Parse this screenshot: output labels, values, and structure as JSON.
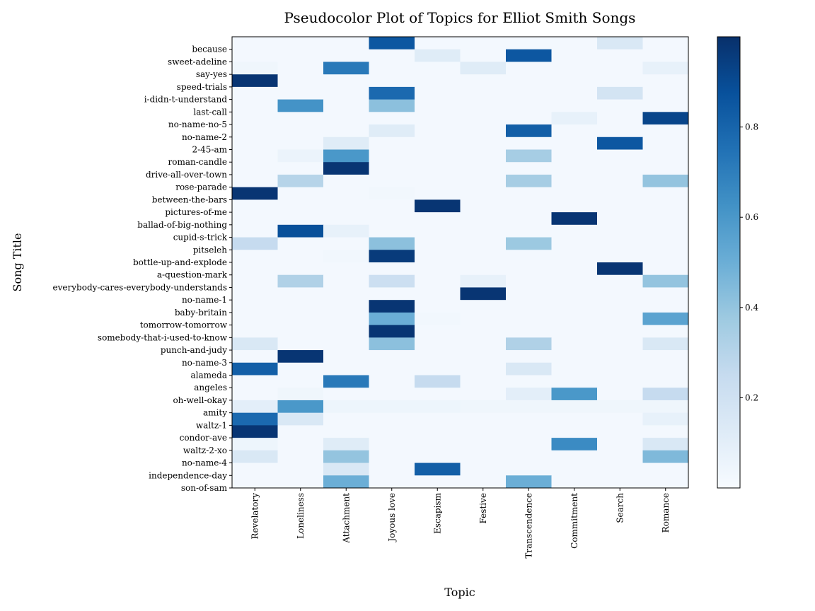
{
  "chart_data": {
    "type": "heatmap",
    "title": "Pseudocolor Plot of Topics for Elliot Smith Songs",
    "xlabel": "Topic",
    "ylabel": "Song Title",
    "colormap": "Blues",
    "colorbar_ticks": [
      0.2,
      0.4,
      0.6,
      0.8
    ],
    "colorbar_range": [
      0,
      1
    ],
    "topics": [
      "Revelatory",
      "Loneliness",
      "Attachment",
      "Joyous love",
      "Escapism",
      "Festive",
      "Transcendence",
      "Commitment",
      "Search",
      "Romance"
    ],
    "songs": [
      "because",
      "sweet-adeline",
      "say-yes",
      "speed-trials",
      "i-didn-t-understand",
      "last-call",
      "no-name-no-5",
      "no-name-2",
      "2-45-am",
      "roman-candle",
      "drive-all-over-town",
      "rose-parade",
      "between-the-bars",
      "pictures-of-me",
      "ballad-of-big-nothing",
      "cupid-s-trick",
      "pitseleh",
      "bottle-up-and-explode",
      "a-question-mark",
      "everybody-cares-everybody-understands",
      "no-name-1",
      "baby-britain",
      "tomorrow-tomorrow",
      "somebody-that-i-used-to-know",
      "punch-and-judy",
      "no-name-3",
      "alameda",
      "angeles",
      "oh-well-okay",
      "amity",
      "waltz-1",
      "condor-ave",
      "waltz-2-xo",
      "no-name-4",
      "independence-day",
      "son-of-sam"
    ],
    "values": [
      [
        0.02,
        0.02,
        0.02,
        0.85,
        0.02,
        0.02,
        0.02,
        0.02,
        0.15,
        0.02
      ],
      [
        0.02,
        0.02,
        0.02,
        0.02,
        0.12,
        0.02,
        0.85,
        0.02,
        0.02,
        0.02
      ],
      [
        0.04,
        0.02,
        0.72,
        0.02,
        0.02,
        0.12,
        0.02,
        0.02,
        0.02,
        0.08
      ],
      [
        0.98,
        0.02,
        0.02,
        0.02,
        0.02,
        0.02,
        0.02,
        0.02,
        0.02,
        0.02
      ],
      [
        0.02,
        0.02,
        0.02,
        0.78,
        0.02,
        0.02,
        0.02,
        0.02,
        0.18,
        0.02
      ],
      [
        0.02,
        0.62,
        0.02,
        0.42,
        0.02,
        0.02,
        0.02,
        0.02,
        0.02,
        0.02
      ],
      [
        0.02,
        0.02,
        0.02,
        0.02,
        0.02,
        0.02,
        0.02,
        0.08,
        0.02,
        0.92
      ],
      [
        0.02,
        0.02,
        0.02,
        0.12,
        0.02,
        0.02,
        0.82,
        0.02,
        0.02,
        0.02
      ],
      [
        0.02,
        0.02,
        0.12,
        0.02,
        0.02,
        0.02,
        0.02,
        0.02,
        0.85,
        0.02
      ],
      [
        0.02,
        0.06,
        0.6,
        0.02,
        0.02,
        0.02,
        0.35,
        0.02,
        0.02,
        0.02
      ],
      [
        0.02,
        0.02,
        0.98,
        0.02,
        0.02,
        0.02,
        0.02,
        0.02,
        0.02,
        0.02
      ],
      [
        0.02,
        0.3,
        0.02,
        0.02,
        0.02,
        0.02,
        0.35,
        0.02,
        0.02,
        0.4
      ],
      [
        0.98,
        0.02,
        0.02,
        0.03,
        0.02,
        0.02,
        0.02,
        0.02,
        0.02,
        0.02
      ],
      [
        0.02,
        0.02,
        0.02,
        0.02,
        0.98,
        0.02,
        0.02,
        0.02,
        0.02,
        0.02
      ],
      [
        0.02,
        0.02,
        0.02,
        0.02,
        0.02,
        0.02,
        0.02,
        0.98,
        0.02,
        0.02
      ],
      [
        0.02,
        0.88,
        0.08,
        0.02,
        0.02,
        0.02,
        0.02,
        0.02,
        0.02,
        0.02
      ],
      [
        0.25,
        0.02,
        0.02,
        0.42,
        0.02,
        0.02,
        0.38,
        0.02,
        0.02,
        0.02
      ],
      [
        0.02,
        0.02,
        0.03,
        0.96,
        0.02,
        0.02,
        0.02,
        0.02,
        0.02,
        0.02
      ],
      [
        0.02,
        0.02,
        0.02,
        0.02,
        0.02,
        0.02,
        0.02,
        0.02,
        0.98,
        0.02
      ],
      [
        0.02,
        0.32,
        0.02,
        0.22,
        0.02,
        0.08,
        0.02,
        0.02,
        0.02,
        0.4
      ],
      [
        0.02,
        0.02,
        0.02,
        0.02,
        0.02,
        0.98,
        0.02,
        0.02,
        0.02,
        0.02
      ],
      [
        0.02,
        0.02,
        0.02,
        0.98,
        0.02,
        0.02,
        0.02,
        0.02,
        0.02,
        0.02
      ],
      [
        0.02,
        0.02,
        0.02,
        0.5,
        0.03,
        0.02,
        0.02,
        0.02,
        0.02,
        0.55
      ],
      [
        0.02,
        0.02,
        0.02,
        0.98,
        0.02,
        0.02,
        0.02,
        0.02,
        0.02,
        0.02
      ],
      [
        0.15,
        0.02,
        0.02,
        0.42,
        0.02,
        0.02,
        0.32,
        0.02,
        0.02,
        0.15
      ],
      [
        0.02,
        0.98,
        0.02,
        0.02,
        0.02,
        0.02,
        0.02,
        0.02,
        0.02,
        0.02
      ],
      [
        0.82,
        0.02,
        0.02,
        0.02,
        0.02,
        0.02,
        0.15,
        0.02,
        0.02,
        0.02
      ],
      [
        0.02,
        0.02,
        0.72,
        0.02,
        0.25,
        0.02,
        0.02,
        0.02,
        0.02,
        0.02
      ],
      [
        0.02,
        0.04,
        0.02,
        0.02,
        0.02,
        0.02,
        0.1,
        0.6,
        0.02,
        0.25
      ],
      [
        0.1,
        0.6,
        0.05,
        0.05,
        0.05,
        0.04,
        0.04,
        0.04,
        0.04,
        0.04
      ],
      [
        0.78,
        0.15,
        0.02,
        0.02,
        0.02,
        0.02,
        0.02,
        0.02,
        0.02,
        0.08
      ],
      [
        0.98,
        0.02,
        0.02,
        0.02,
        0.02,
        0.02,
        0.02,
        0.02,
        0.02,
        0.02
      ],
      [
        0.05,
        0.02,
        0.12,
        0.02,
        0.02,
        0.02,
        0.02,
        0.65,
        0.02,
        0.15
      ],
      [
        0.15,
        0.02,
        0.4,
        0.02,
        0.02,
        0.02,
        0.02,
        0.02,
        0.02,
        0.45
      ],
      [
        0.02,
        0.02,
        0.15,
        0.02,
        0.82,
        0.02,
        0.02,
        0.02,
        0.02,
        0.02
      ],
      [
        0.02,
        0.02,
        0.5,
        0.02,
        0.02,
        0.02,
        0.5,
        0.02,
        0.02,
        0.02
      ]
    ]
  }
}
